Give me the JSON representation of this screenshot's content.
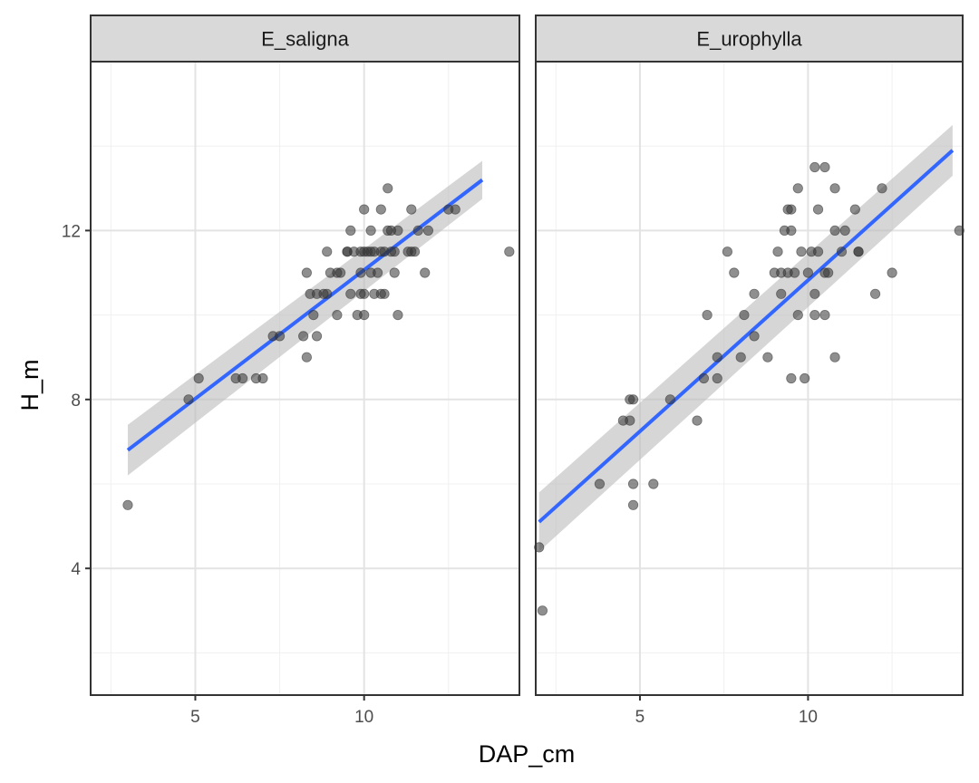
{
  "chart_data": {
    "type": "scatter",
    "xlabel": "DAP_cm",
    "ylabel": "H_m",
    "xlim": [
      1.9,
      14.6
    ],
    "ylim": [
      1.0,
      16.0
    ],
    "x_breaks": [
      5,
      10
    ],
    "y_breaks": [
      4,
      8,
      12
    ],
    "grid": true,
    "point_color": "#333333",
    "line_color": "#3366FF",
    "ribbon_color": "#BBBBBB",
    "strip_fill": "#D9D9D9",
    "panels": [
      {
        "label": "E_saligna",
        "fit": {
          "x": [
            3.0,
            13.5
          ],
          "y": [
            6.8,
            13.2
          ],
          "se_lower": [
            6.2,
            12.75
          ],
          "se_upper": [
            7.4,
            13.65
          ]
        },
        "points": [
          [
            3.0,
            5.5
          ],
          [
            4.8,
            8.0
          ],
          [
            5.1,
            8.5
          ],
          [
            6.2,
            8.5
          ],
          [
            6.4,
            8.5
          ],
          [
            6.8,
            8.5
          ],
          [
            7.0,
            8.5
          ],
          [
            7.3,
            9.5
          ],
          [
            7.5,
            9.5
          ],
          [
            8.2,
            9.5
          ],
          [
            8.3,
            9.0
          ],
          [
            8.3,
            11.0
          ],
          [
            8.4,
            10.5
          ],
          [
            8.5,
            10.0
          ],
          [
            8.6,
            9.5
          ],
          [
            8.6,
            10.5
          ],
          [
            8.8,
            10.5
          ],
          [
            8.9,
            10.5
          ],
          [
            8.9,
            11.5
          ],
          [
            9.0,
            11.0
          ],
          [
            9.2,
            10.0
          ],
          [
            9.2,
            11.0
          ],
          [
            9.3,
            11.0
          ],
          [
            9.5,
            11.5
          ],
          [
            9.5,
            11.5
          ],
          [
            9.6,
            10.5
          ],
          [
            9.6,
            12.0
          ],
          [
            9.7,
            11.5
          ],
          [
            9.8,
            10.0
          ],
          [
            9.9,
            11.0
          ],
          [
            9.9,
            11.5
          ],
          [
            9.9,
            10.5
          ],
          [
            10.0,
            10.5
          ],
          [
            10.0,
            11.5
          ],
          [
            10.0,
            10.0
          ],
          [
            10.1,
            11.5
          ],
          [
            10.2,
            11.0
          ],
          [
            10.2,
            11.5
          ],
          [
            10.2,
            12.0
          ],
          [
            10.3,
            10.5
          ],
          [
            10.3,
            11.5
          ],
          [
            10.4,
            11.0
          ],
          [
            10.5,
            10.5
          ],
          [
            10.5,
            11.5
          ],
          [
            10.6,
            10.5
          ],
          [
            10.6,
            11.5
          ],
          [
            10.7,
            12.0
          ],
          [
            10.8,
            11.5
          ],
          [
            10.8,
            12.0
          ],
          [
            10.9,
            11.0
          ],
          [
            10.9,
            11.5
          ],
          [
            11.0,
            12.0
          ],
          [
            11.0,
            10.0
          ],
          [
            11.3,
            11.5
          ],
          [
            11.4,
            11.5
          ],
          [
            11.4,
            12.5
          ],
          [
            11.5,
            11.5
          ],
          [
            11.6,
            12.0
          ],
          [
            11.8,
            11.0
          ],
          [
            11.9,
            12.0
          ],
          [
            10.7,
            13.0
          ],
          [
            10.5,
            12.5
          ],
          [
            10.0,
            12.5
          ],
          [
            12.5,
            12.5
          ],
          [
            12.7,
            12.5
          ],
          [
            14.3,
            11.5
          ]
        ]
      },
      {
        "label": "E_urophylla",
        "fit": {
          "x": [
            2.0,
            14.3
          ],
          "y": [
            5.1,
            13.9
          ],
          "se_lower": [
            4.4,
            13.3
          ],
          "se_upper": [
            5.8,
            14.5
          ]
        },
        "points": [
          [
            2.0,
            4.5
          ],
          [
            2.1,
            3.0
          ],
          [
            3.8,
            6.0
          ],
          [
            4.5,
            7.5
          ],
          [
            4.7,
            8.0
          ],
          [
            4.8,
            8.0
          ],
          [
            4.7,
            7.5
          ],
          [
            4.8,
            6.0
          ],
          [
            4.8,
            5.5
          ],
          [
            5.4,
            6.0
          ],
          [
            5.9,
            8.0
          ],
          [
            6.7,
            7.5
          ],
          [
            6.9,
            8.5
          ],
          [
            7.0,
            10.0
          ],
          [
            7.3,
            9.0
          ],
          [
            7.3,
            8.5
          ],
          [
            7.6,
            11.5
          ],
          [
            7.8,
            11.0
          ],
          [
            8.0,
            9.0
          ],
          [
            8.1,
            10.0
          ],
          [
            8.4,
            9.5
          ],
          [
            8.4,
            10.5
          ],
          [
            8.8,
            9.0
          ],
          [
            9.0,
            11.0
          ],
          [
            9.1,
            11.5
          ],
          [
            9.2,
            11.0
          ],
          [
            9.2,
            10.5
          ],
          [
            9.3,
            12.0
          ],
          [
            9.4,
            12.5
          ],
          [
            9.4,
            11.0
          ],
          [
            9.5,
            12.0
          ],
          [
            9.5,
            12.5
          ],
          [
            9.5,
            8.5
          ],
          [
            9.6,
            11.0
          ],
          [
            9.7,
            10.0
          ],
          [
            9.7,
            13.0
          ],
          [
            9.8,
            11.5
          ],
          [
            9.9,
            8.5
          ],
          [
            10.0,
            11.0
          ],
          [
            10.1,
            11.5
          ],
          [
            10.2,
            13.5
          ],
          [
            10.2,
            10.0
          ],
          [
            10.2,
            10.5
          ],
          [
            10.3,
            12.5
          ],
          [
            10.3,
            11.5
          ],
          [
            10.5,
            13.5
          ],
          [
            10.5,
            11.0
          ],
          [
            10.5,
            10.0
          ],
          [
            10.6,
            11.0
          ],
          [
            10.8,
            13.0
          ],
          [
            10.8,
            12.0
          ],
          [
            10.8,
            9.0
          ],
          [
            11.0,
            11.5
          ],
          [
            11.1,
            12.0
          ],
          [
            11.4,
            12.5
          ],
          [
            11.5,
            11.5
          ],
          [
            11.5,
            11.5
          ],
          [
            12.0,
            10.5
          ],
          [
            12.2,
            13.0
          ],
          [
            12.5,
            11.0
          ],
          [
            14.5,
            12.0
          ]
        ]
      }
    ]
  }
}
